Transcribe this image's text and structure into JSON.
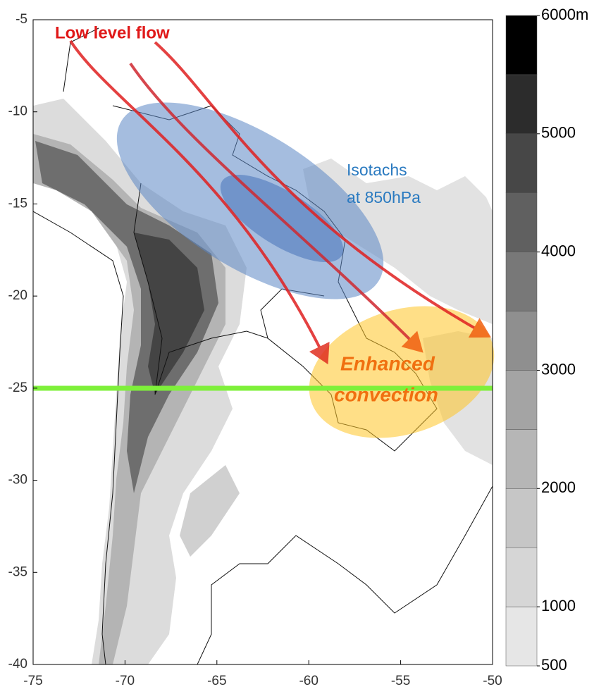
{
  "map": {
    "xlim": [
      -75,
      -50
    ],
    "ylim": [
      -40,
      -5
    ],
    "xticks": [
      -75,
      -70,
      -65,
      -60,
      -55,
      -50
    ],
    "yticks": [
      -5,
      -10,
      -15,
      -20,
      -25,
      -30,
      -35,
      -40
    ]
  },
  "colorbar": {
    "range": [
      500,
      6000
    ],
    "ticks": [
      {
        "value": 6000,
        "label": "6000m"
      },
      5000,
      4000,
      3000,
      2000,
      1000,
      500
    ]
  },
  "annotations": {
    "flow": "Low level flow",
    "isotachs": [
      "Isotachs",
      "at 850hPa"
    ],
    "convection": [
      "Enhanced",
      "convection"
    ]
  }
}
